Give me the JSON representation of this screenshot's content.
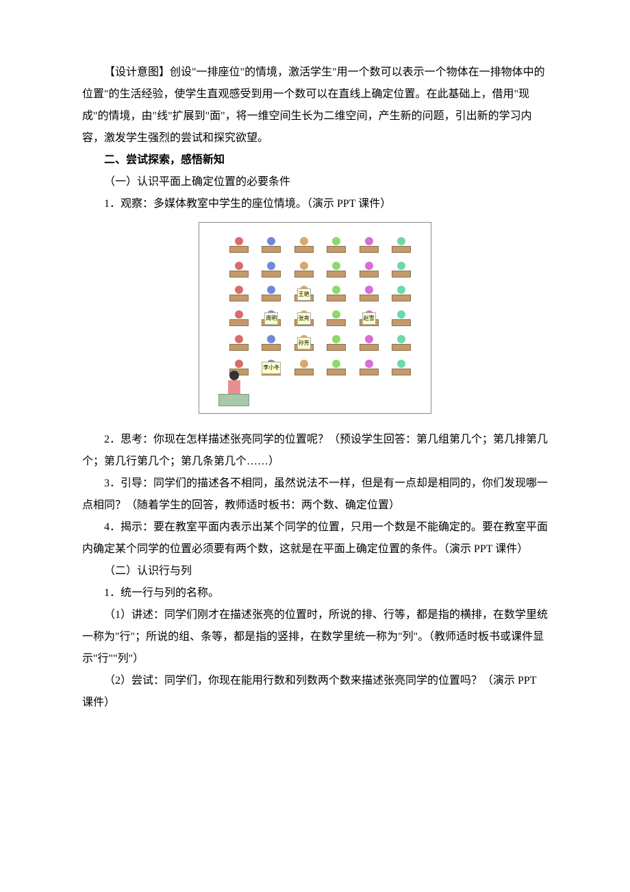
{
  "paragraphs": {
    "p1": "【设计意图】创设\"一排座位\"的情境，激活学生\"用一个数可以表示一个物体在一排物体中的位置\"的生活经验，使学生直观感受到用一个数可以在直线上确定位置。在此基础上，借用\"现成\"的情境，由\"线\"扩展到\"面\"，将一维空间生长为二维空间，产生新的问题，引出新的学习内容，激发学生强烈的尝试和探究欲望。",
    "heading1": "二、尝试探索，感悟新知",
    "sub1": "（一）认识平面上确定位置的必要条件",
    "p2": "1．观察：多媒体教室中学生的座位情境。（演示 PPT 课件）",
    "p3": "2．思考：你现在怎样描述张亮同学的位置呢？（预设学生回答：第几组第几个；第几排第几个；第几行第几个；第几条第几个……）",
    "p4": "3．引导：同学们的描述各不相同，虽然说法不一样，但是有一点却是相同的，你们发现哪一点相同？（随着学生的回答，教师适时板书：两个数、确定位置）",
    "p5": "4．揭示：要在教室平面内表示出某个同学的位置，只用一个数是不能确定的。要在教室平面内确定某个同学的位置必须要有两个数，这就是在平面上确定位置的条件。（演示 PPT 课件）",
    "sub2": "（二）认识行与列",
    "p6": "1．统一行与列的名称。",
    "p7": "（1）讲述：同学们刚才在描述张亮的位置时，所说的排、行等，都是指的横排，在数学里统一称为\"行\"；所说的组、条等，都是指的竖排，在数学里统一称为\"列\"。（教师适时板书或课件显示\"行\"\"列\"）",
    "p8": "（2）尝试：同学们，你现在能用行数和列数两个数来描述张亮同学的位置吗？（演示 PPT 课件）"
  },
  "classroom": {
    "labels": {
      "wangyan": "王艳",
      "zhouming": "周明",
      "zhangliang": "张亮",
      "zhaoxue": "赵雪",
      "sunfang": "孙芳",
      "lixiaodong": "李小冬"
    },
    "colors": {
      "desk": "#c49a6c",
      "desk_border": "#8b6f47",
      "teacher_podium": "#a8c8a8",
      "label_bg": "#ffffcc",
      "border": "#888888"
    },
    "head_colors": [
      "#d96c6c",
      "#6c8cd9",
      "#d9a86c",
      "#8cd96c",
      "#d96cd9",
      "#6cd9a8"
    ]
  }
}
